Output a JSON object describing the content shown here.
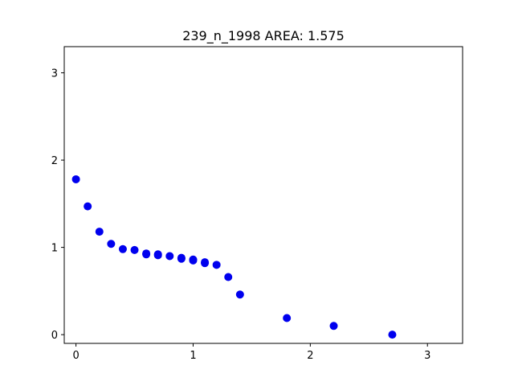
{
  "chart_data": {
    "type": "scatter",
    "title": "239_n_1998 AREA: 1.575",
    "xlabel": "",
    "ylabel": "",
    "xlim": [
      -0.1,
      3.3
    ],
    "ylim": [
      -0.1,
      3.3
    ],
    "x_ticks": [
      "0",
      "1",
      "2",
      "3"
    ],
    "y_ticks": [
      "0",
      "1",
      "2",
      "3"
    ],
    "grid": false,
    "marker_color": "#0000ee",
    "points": [
      {
        "x": 0.0,
        "y": 1.78
      },
      {
        "x": 0.1,
        "y": 1.47
      },
      {
        "x": 0.2,
        "y": 1.18
      },
      {
        "x": 0.3,
        "y": 1.04
      },
      {
        "x": 0.4,
        "y": 0.98
      },
      {
        "x": 0.5,
        "y": 0.97
      },
      {
        "x": 0.6,
        "y": 0.93
      },
      {
        "x": 0.6,
        "y": 0.92
      },
      {
        "x": 0.7,
        "y": 0.92
      },
      {
        "x": 0.7,
        "y": 0.91
      },
      {
        "x": 0.8,
        "y": 0.9
      },
      {
        "x": 0.9,
        "y": 0.88
      },
      {
        "x": 0.9,
        "y": 0.87
      },
      {
        "x": 1.0,
        "y": 0.86
      },
      {
        "x": 1.0,
        "y": 0.85
      },
      {
        "x": 1.1,
        "y": 0.83
      },
      {
        "x": 1.1,
        "y": 0.82
      },
      {
        "x": 1.2,
        "y": 0.8
      },
      {
        "x": 1.3,
        "y": 0.66
      },
      {
        "x": 1.4,
        "y": 0.46
      },
      {
        "x": 1.8,
        "y": 0.19
      },
      {
        "x": 2.2,
        "y": 0.1
      },
      {
        "x": 2.7,
        "y": 0.0
      }
    ]
  }
}
